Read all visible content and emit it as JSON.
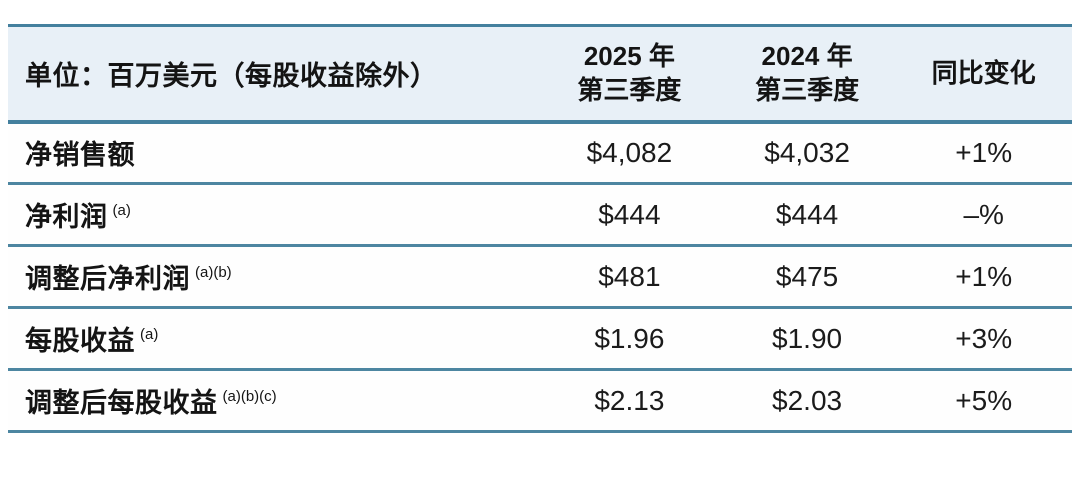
{
  "table": {
    "unit_label": "单位：百万美元（每股收益除外）",
    "columns": [
      {
        "line1": "2025 年",
        "line2": "第三季度"
      },
      {
        "line1": "2024 年",
        "line2": "第三季度"
      },
      {
        "line1": "同比变化",
        "line2": ""
      }
    ],
    "rows": [
      {
        "label": "净销售额",
        "footnote": "",
        "q3_2025": "$4,082",
        "q3_2024": "$4,032",
        "change": "+1%"
      },
      {
        "label": "净利润",
        "footnote": "(a)",
        "q3_2025": "$444",
        "q3_2024": "$444",
        "change": "–%"
      },
      {
        "label": "调整后净利润",
        "footnote": "(a)(b)",
        "q3_2025": "$481",
        "q3_2024": "$475",
        "change": "+1%"
      },
      {
        "label": "每股收益",
        "footnote": "(a)",
        "q3_2025": "$1.96",
        "q3_2024": "$1.90",
        "change": "+3%"
      },
      {
        "label": "调整后每股收益",
        "footnote": "(a)(b)(c)",
        "q3_2025": "$2.13",
        "q3_2024": "$2.03",
        "change": "+5%"
      }
    ]
  },
  "colors": {
    "rule_line": "#4d86a1",
    "header_background": "#e8f0f7",
    "body_background": "#fefefe",
    "text": "#141414"
  },
  "chart_data": {
    "type": "table",
    "title": "单位：百万美元（每股收益除外）",
    "columns": [
      "",
      "2025 年 第三季度",
      "2024 年 第三季度",
      "同比变化"
    ],
    "rows": [
      [
        "净销售额",
        "$4,082",
        "$4,032",
        "+1%"
      ],
      [
        "净利润 (a)",
        "$444",
        "$444",
        "–%"
      ],
      [
        "调整后净利润 (a)(b)",
        "$481",
        "$475",
        "+1%"
      ],
      [
        "每股收益 (a)",
        "$1.96",
        "$1.90",
        "+3%"
      ],
      [
        "调整后每股收益 (a)(b)(c)",
        "$2.13",
        "$2.03",
        "+5%"
      ]
    ]
  }
}
